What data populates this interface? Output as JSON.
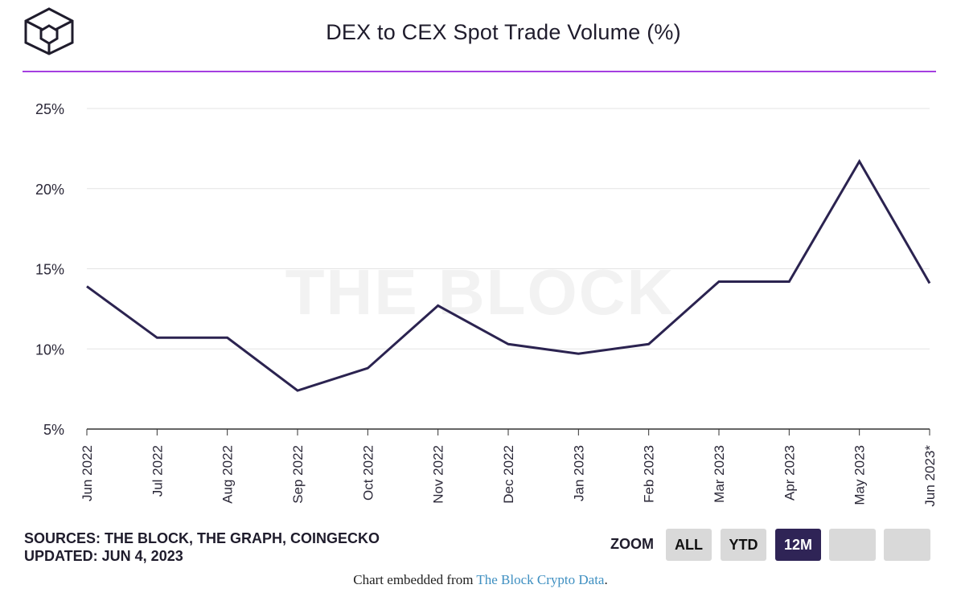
{
  "title": "DEX to CEX Spot Trade Volume (%)",
  "watermark": "THE BLOCK",
  "footer": {
    "sources": "SOURCES: THE BLOCK, THE GRAPH, COINGECKO",
    "updated": "UPDATED: JUN 4, 2023",
    "embed_prefix": "Chart embedded from ",
    "embed_link": "The Block Crypto Data",
    "embed_suffix": "."
  },
  "zoom": {
    "label": "ZOOM",
    "buttons": [
      {
        "label": "ALL",
        "active": false
      },
      {
        "label": "YTD",
        "active": false
      },
      {
        "label": "12M",
        "active": true
      },
      {
        "label": "",
        "active": false
      },
      {
        "label": "",
        "active": false
      }
    ]
  },
  "colors": {
    "accent_rule": "#a43fe0",
    "line": "#2b2350",
    "active_button": "#2f2456"
  },
  "chart_data": {
    "type": "line",
    "title": "DEX to CEX Spot Trade Volume (%)",
    "xlabel": "",
    "ylabel": "",
    "ylim": [
      5,
      25
    ],
    "y_ticks": [
      "25%",
      "20%",
      "15%",
      "10%",
      "5%"
    ],
    "y_tick_values": [
      25,
      20,
      15,
      10,
      5
    ],
    "grid": true,
    "categories": [
      "Jun 2022",
      "Jul 2022",
      "Aug 2022",
      "Sep 2022",
      "Oct 2022",
      "Nov 2022",
      "Dec 2022",
      "Jan 2023",
      "Feb 2023",
      "Mar 2023",
      "Apr 2023",
      "May 2023",
      "Jun 2023*"
    ],
    "series": [
      {
        "values": [
          13.9,
          10.7,
          10.7,
          7.4,
          8.8,
          12.7,
          10.3,
          9.7,
          10.3,
          14.2,
          14.2,
          21.7,
          14.1
        ]
      }
    ]
  }
}
